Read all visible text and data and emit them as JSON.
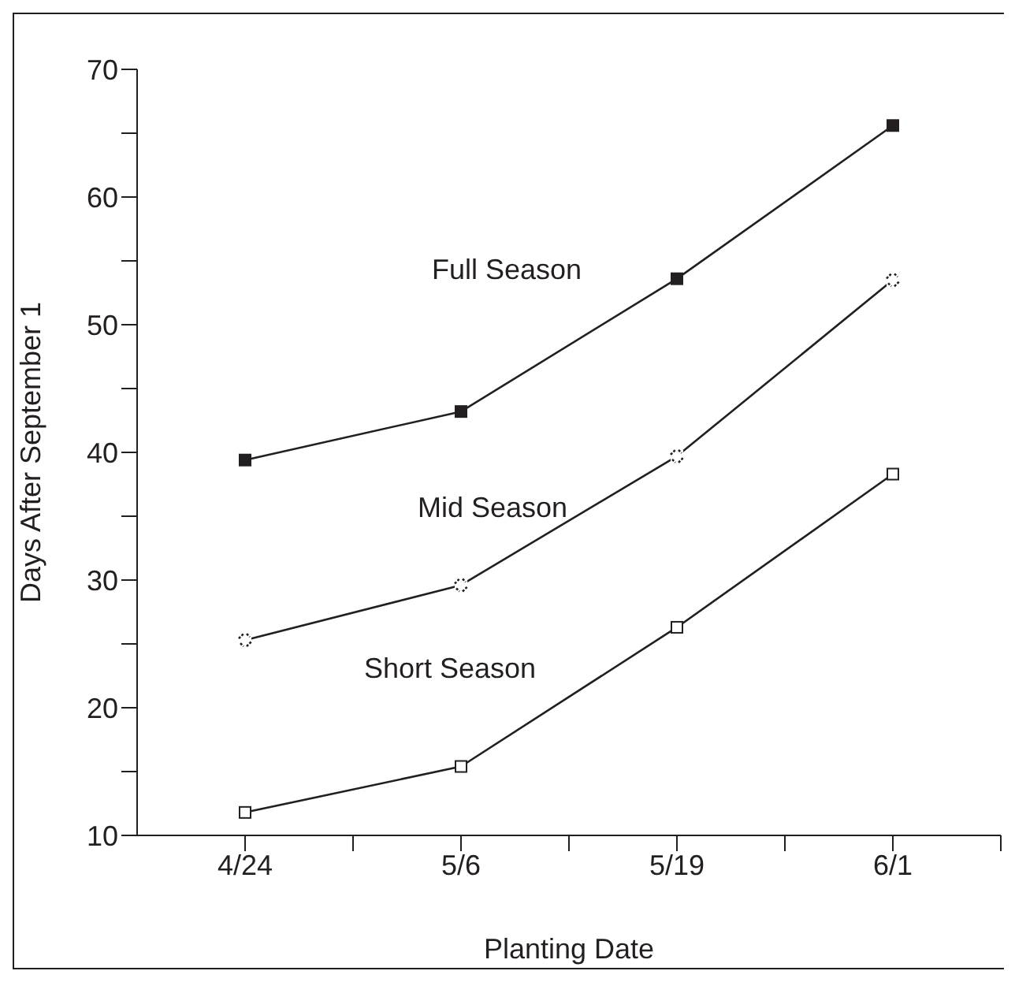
{
  "chart_data": {
    "type": "line",
    "xlabel": "Planting Date",
    "ylabel": "Days After September 1",
    "categories": [
      "4/24",
      "5/6",
      "5/19",
      "6/1"
    ],
    "series": [
      {
        "name": "Full Season",
        "color": "#231f20",
        "marker": "square",
        "values": [
          39.4,
          43.2,
          53.6,
          65.6
        ]
      },
      {
        "name": "Mid Season",
        "color": "#231f20",
        "marker": "cross",
        "values": [
          25.3,
          29.6,
          39.7,
          53.5
        ]
      },
      {
        "name": "Short Season",
        "color": "#231f20",
        "marker": "square",
        "values": [
          11.8,
          15.4,
          26.3,
          38.3
        ]
      }
    ],
    "ylim": [
      10,
      70
    ],
    "yticks": [
      10,
      {
        "value": 15,
        "label": null
      },
      20,
      {
        "value": 25,
        "label": null
      },
      30,
      {
        "value": 35,
        "label": null
      },
      40,
      {
        "value": 45,
        "label": null
      },
      50,
      {
        "value": 55,
        "label": null
      },
      60,
      {
        "value": 65,
        "label": null
      },
      70
    ],
    "grid": false,
    "legend": false,
    "line_style": "solid"
  }
}
